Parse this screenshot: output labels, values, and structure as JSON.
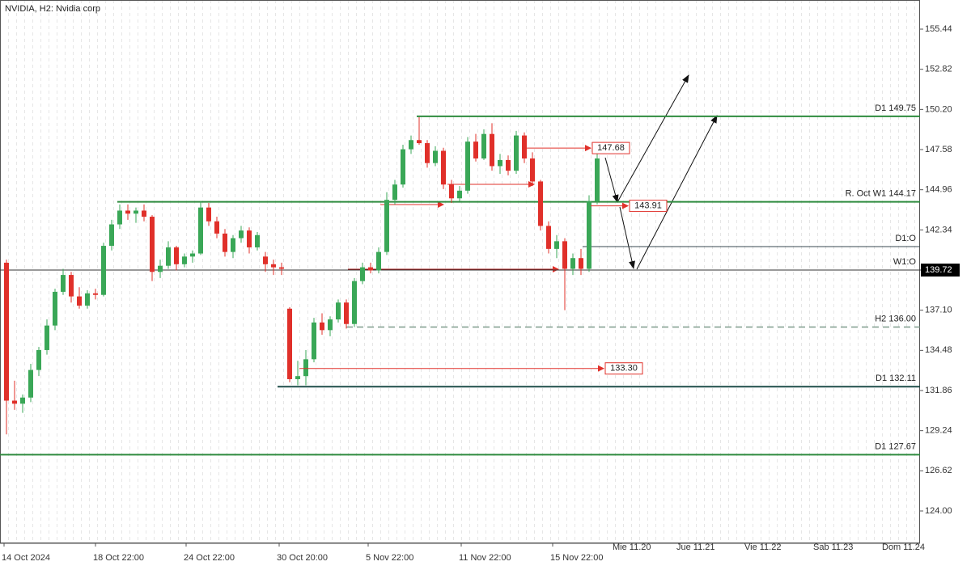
{
  "chart_data": {
    "type": "candlestick",
    "title": "NVIDIA, H2:  Nvidia corp",
    "up_color": "#3aa757",
    "down_color": "#e0302a",
    "open": [
      140.2,
      131.2,
      131.0,
      131.4,
      133.2,
      134.5,
      136.1,
      138.3,
      139.4,
      138.0,
      137.4,
      138.2,
      138.1,
      141.3,
      142.7,
      143.6,
      143.4,
      143.6,
      143.2,
      139.6,
      140.0,
      141.2,
      140.1,
      140.6,
      140.8,
      143.8,
      142.9,
      142.1,
      140.9,
      141.8,
      142.3,
      141.2,
      140.6,
      140.1,
      139.9,
      137.2,
      132.6,
      132.8,
      133.9,
      136.3,
      135.8,
      136.5,
      137.6,
      136.2,
      139.0,
      139.9,
      139.7,
      140.9,
      144.3,
      145.3,
      147.6,
      148.2,
      148.0,
      146.7,
      147.5,
      145.3,
      144.4,
      144.9,
      148.1,
      147.0,
      148.6,
      146.5,
      146.9,
      146.2,
      148.5,
      147.0,
      145.5,
      142.6,
      141.1,
      141.6,
      139.8,
      140.5,
      139.8,
      144.2
    ],
    "high": [
      140.4,
      132.5,
      131.6,
      133.6,
      134.7,
      136.5,
      138.5,
      139.8,
      139.6,
      138.6,
      138.4,
      138.5,
      141.5,
      143.0,
      144.0,
      144.0,
      143.8,
      144.0,
      143.3,
      140.4,
      141.6,
      141.3,
      140.8,
      141.0,
      144.2,
      144.1,
      143.2,
      142.4,
      142.0,
      142.6,
      142.5,
      142.2,
      140.9,
      140.4,
      140.2,
      137.3,
      133.8,
      134.5,
      136.6,
      136.9,
      136.7,
      137.8,
      137.8,
      139.2,
      140.2,
      140.2,
      141.2,
      144.8,
      145.6,
      147.9,
      148.5,
      149.7,
      148.2,
      147.8,
      147.7,
      145.6,
      145.2,
      148.4,
      148.6,
      148.9,
      149.3,
      147.3,
      147.2,
      148.8,
      148.7,
      147.4,
      145.6,
      142.9,
      142.0,
      141.8,
      140.8,
      141.1,
      144.6,
      147.4
    ],
    "low": [
      129.0,
      130.6,
      130.4,
      131.1,
      132.8,
      134.2,
      135.8,
      138.1,
      137.6,
      137.2,
      137.2,
      137.8,
      138.0,
      141.0,
      142.4,
      143.0,
      142.8,
      142.9,
      139.0,
      139.2,
      139.8,
      139.7,
      139.9,
      140.2,
      140.7,
      142.6,
      141.8,
      140.6,
      140.5,
      141.5,
      140.8,
      141.0,
      139.6,
      139.4,
      139.4,
      132.4,
      132.2,
      132.2,
      133.7,
      135.5,
      135.4,
      136.3,
      135.9,
      136.0,
      138.8,
      139.5,
      139.5,
      140.7,
      144.0,
      145.1,
      147.3,
      147.9,
      146.4,
      146.5,
      145.0,
      144.1,
      144.2,
      144.7,
      146.8,
      146.9,
      146.2,
      146.0,
      145.9,
      146.0,
      146.7,
      145.2,
      142.3,
      140.8,
      140.5,
      137.1,
      139.4,
      139.4,
      139.6,
      144.0
    ],
    "close": [
      131.2,
      131.0,
      131.4,
      133.2,
      134.5,
      136.1,
      138.3,
      139.4,
      138.0,
      137.4,
      138.2,
      138.1,
      141.3,
      142.7,
      143.6,
      143.4,
      143.6,
      143.2,
      139.6,
      140.0,
      141.2,
      140.1,
      140.6,
      140.8,
      143.8,
      142.9,
      142.1,
      140.9,
      141.8,
      142.3,
      141.2,
      142.0,
      140.1,
      139.9,
      139.8,
      132.6,
      132.8,
      133.9,
      136.3,
      135.8,
      136.5,
      137.6,
      136.2,
      139.0,
      139.9,
      139.7,
      140.9,
      144.3,
      145.3,
      147.6,
      148.2,
      148.0,
      146.7,
      147.5,
      145.3,
      144.4,
      144.9,
      148.1,
      147.0,
      148.6,
      146.5,
      146.9,
      146.2,
      148.5,
      147.0,
      145.5,
      142.6,
      141.1,
      141.6,
      139.8,
      140.5,
      139.8,
      144.2,
      147.0
    ],
    "ylim": [
      121.89,
      157.34
    ],
    "yticks": [
      {
        "value": 124,
        "label": "124.00"
      },
      {
        "value": 126.62,
        "label": "126.62"
      },
      {
        "value": 129.24,
        "label": "129.24"
      },
      {
        "value": 131.86,
        "label": "131.86"
      },
      {
        "value": 134.48,
        "label": "134.48"
      },
      {
        "value": 137.1,
        "label": "137.10"
      },
      {
        "value": 139.72,
        "label": "139.72"
      },
      {
        "value": 142.34,
        "label": "142.34"
      },
      {
        "value": 144.96,
        "label": "144.96"
      },
      {
        "value": 147.58,
        "label": "147.58"
      },
      {
        "value": 150.2,
        "label": "150.20"
      },
      {
        "value": 152.82,
        "label": "152.82"
      },
      {
        "value": 155.44,
        "label": "155.44"
      }
    ],
    "current_price": 139.72,
    "x_labels_bottom": [
      "14 Oct 2024",
      "18 Oct 22:00",
      "24 Oct 22:00",
      "30 Oct 20:00",
      "5 Nov 22:00",
      "11 Nov 22:00",
      "15 Nov 22:00"
    ],
    "x_labels_top": [
      "Mie 11.20",
      "Jue 11.21",
      "Vie 11.22",
      "Sab 11.23",
      "Dom 11.24"
    ],
    "levels": [
      {
        "label": "D1 149.75",
        "value": 149.75,
        "color": "#2e8b3e",
        "style": "solid"
      },
      {
        "label": "R. Oct W1 144.17",
        "value": 144.17,
        "color": "#2e8b3e",
        "style": "solid"
      },
      {
        "label": "D1:O",
        "value": 141.25,
        "color": "#3a4a52",
        "style": "thin"
      },
      {
        "label": "W1:O",
        "value": 139.72,
        "color": "#333333",
        "style": "thin"
      },
      {
        "label": "H2 136.00",
        "value": 136.0,
        "color": "#7f9c8c",
        "style": "dashed"
      },
      {
        "label": "D1 132.11",
        "value": 132.11,
        "color": "#1f4e4a",
        "style": "solid"
      },
      {
        "label": "D1 127.67",
        "value": 127.67,
        "color": "#2e8b3e",
        "style": "solid"
      }
    ],
    "targets": {
      "values": [
        147.68,
        143.91,
        133.3
      ],
      "value_labels": [
        "147.68",
        "143.91",
        "133.30"
      ],
      "color": "#e0302a"
    }
  }
}
